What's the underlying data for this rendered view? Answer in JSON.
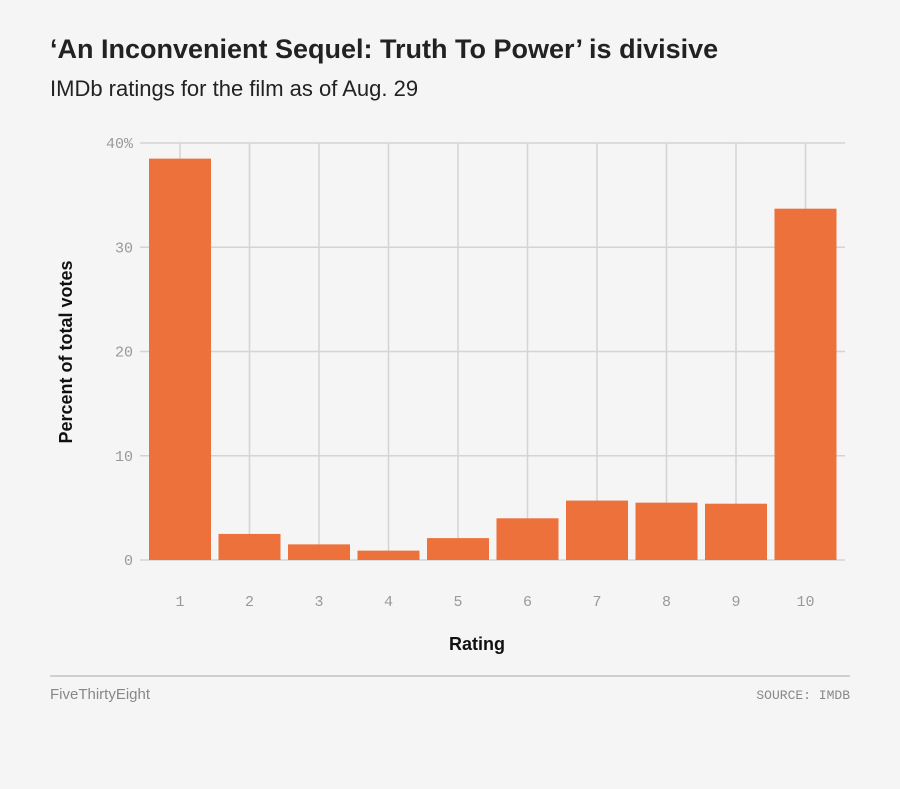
{
  "header": {
    "title": "‘An Inconvenient Sequel: Truth To Power’ is divisive",
    "subtitle": "IMDb ratings for the film as of Aug. 29"
  },
  "footer": {
    "brand": "FiveThirtyEight",
    "source": "SOURCE: IMDB"
  },
  "colors": {
    "bar": "#ed713a",
    "grid": "#d4d4d4",
    "background": "#f5f5f5",
    "axis_text": "#999999"
  },
  "chart_data": {
    "type": "bar",
    "xlabel": "Rating",
    "ylabel": "Percent of total votes",
    "ylim": [
      0,
      40
    ],
    "yticks": [
      0,
      10,
      20,
      30,
      40
    ],
    "ytick_labels": [
      "0",
      "10",
      "20",
      "30",
      "40%"
    ],
    "categories": [
      "1",
      "2",
      "3",
      "4",
      "5",
      "6",
      "7",
      "8",
      "9",
      "10"
    ],
    "values": [
      38.5,
      2.5,
      1.5,
      0.9,
      2.1,
      4.0,
      5.7,
      5.5,
      5.4,
      33.7
    ],
    "grid": true
  }
}
